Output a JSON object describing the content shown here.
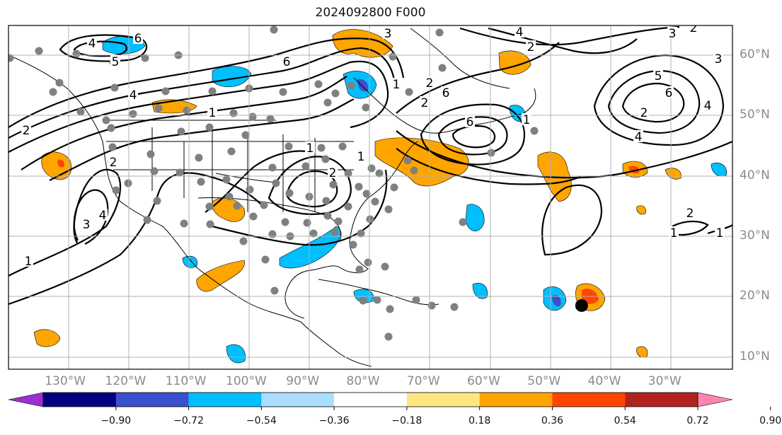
{
  "title": "2024092800 F000",
  "lon_labels": [
    "130°W",
    "120°W",
    "110°W",
    "100°W",
    "90°W",
    "80°W",
    "70°W",
    "60°W",
    "50°W",
    "40°W",
    "30°W"
  ],
  "lat_labels": [
    "60°N",
    "50°N",
    "40°N",
    "30°N",
    "20°N",
    "10°N"
  ],
  "colorbar": {
    "ticks": [
      "−0.90",
      "−0.72",
      "−0.54",
      "−0.36",
      "−0.18",
      "0.18",
      "0.36",
      "0.54",
      "0.72",
      "0.90"
    ],
    "colors": [
      "#9b30d0",
      "#000080",
      "#3a50cc",
      "#00bfff",
      "#aaddff",
      "#ffffff",
      "#ffe680",
      "#ffa500",
      "#ff4500",
      "#b22222",
      "#ff85b0"
    ]
  },
  "contour_labels": [
    "4",
    "6",
    "5",
    "4",
    "2",
    "1",
    "6",
    "2",
    "2",
    "6",
    "1",
    "1",
    "2",
    "1",
    "2",
    "1",
    "4",
    "3",
    "3",
    "4",
    "2",
    "1",
    "6",
    "4",
    "2",
    "5",
    "6",
    "4",
    "3",
    "2",
    "3",
    "2",
    "1",
    "1"
  ],
  "center_marker": {
    "lon": -45,
    "lat": 18.5
  }
}
